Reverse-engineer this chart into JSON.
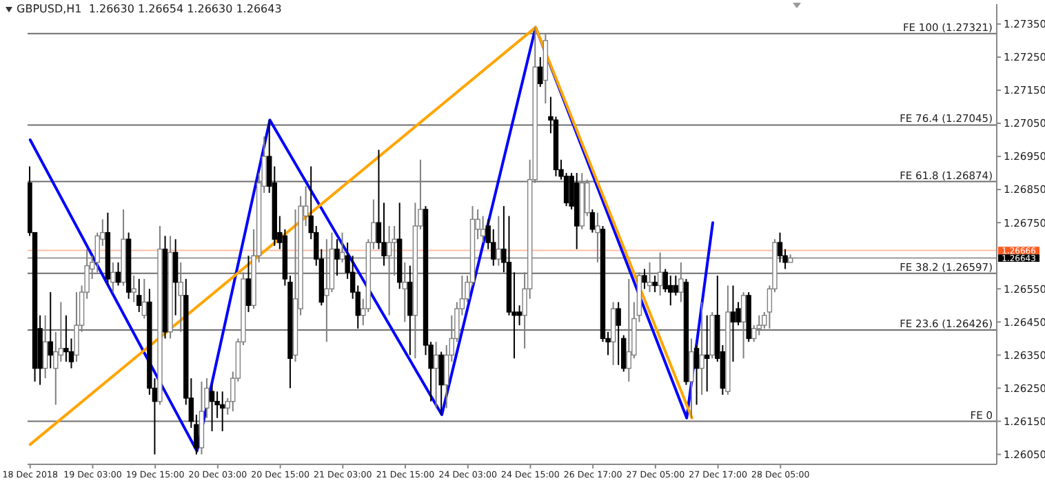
{
  "chart_data": {
    "type": "candlestick",
    "title": "GBPUSD,H1  1.26630 1.26654 1.26630 1.26643",
    "categories": [
      "18 Dec 2018",
      null,
      null,
      null,
      null,
      null,
      null,
      null,
      null,
      null,
      null,
      null,
      "19 Dec 03:00",
      null,
      null,
      null,
      null,
      null,
      null,
      null,
      null,
      null,
      null,
      null,
      "19 Dec 15:00",
      null,
      null,
      null,
      null,
      null,
      null,
      null,
      null,
      null,
      null,
      null,
      "20 Dec 03:00",
      null,
      null,
      null,
      null,
      null,
      null,
      null,
      null,
      null,
      null,
      null,
      "20 Dec 15:00",
      null,
      null,
      null,
      null,
      null,
      null,
      null,
      null,
      null,
      null,
      null,
      "21 Dec 03:00",
      null,
      null,
      null,
      null,
      null,
      null,
      null,
      null,
      null,
      null,
      null,
      "21 Dec 15:00",
      null,
      null,
      null,
      null,
      null,
      null,
      null,
      null,
      null,
      null,
      null,
      "24 Dec 03:00",
      null,
      null,
      null,
      null,
      null,
      null,
      null,
      null,
      null,
      null,
      null,
      "24 Dec 15:00",
      null,
      null,
      null,
      null,
      null,
      null,
      null,
      null,
      null,
      null,
      null,
      "26 Dec 17:00",
      null,
      null,
      null,
      null,
      null,
      null,
      null,
      null,
      null,
      null,
      null,
      "27 Dec 05:00",
      null,
      null,
      null,
      null,
      null,
      null,
      null,
      null,
      null,
      null,
      null,
      "27 Dec 17:00",
      null,
      null,
      null,
      null,
      null,
      null,
      null,
      null,
      null,
      null,
      null,
      "28 Dec 05:00",
      null,
      null,
      null,
      null,
      null,
      null,
      null,
      null,
      null,
      null,
      null,
      null,
      null,
      null,
      null,
      null,
      null,
      null,
      null,
      null,
      null,
      null,
      null,
      null,
      null,
      null,
      null,
      null,
      null,
      null,
      null,
      null,
      null,
      null,
      null,
      null,
      null,
      null,
      null,
      null,
      null
    ],
    "ohlc": [
      [
        1.2687,
        1.2692,
        1.2671,
        1.2672
      ],
      [
        1.2672,
        1.2672,
        1.2627,
        1.2631
      ],
      [
        1.2643,
        1.2647,
        1.2626,
        1.2631
      ],
      [
        1.2631,
        1.2647,
        1.2628,
        1.2639
      ],
      [
        1.2639,
        1.2654,
        1.2631,
        1.2635
      ],
      [
        1.2631,
        1.2642,
        1.262,
        1.2636
      ],
      [
        1.2635,
        1.2651,
        1.2633,
        1.2637
      ],
      [
        1.2637,
        1.2647,
        1.2633,
        1.2636
      ],
      [
        1.2636,
        1.264,
        1.2631,
        1.2633
      ],
      [
        1.2635,
        1.2654,
        1.2633,
        1.2644
      ],
      [
        1.2644,
        1.2656,
        1.2642,
        1.2654
      ],
      [
        1.2654,
        1.2667,
        1.2652,
        1.2662
      ],
      [
        1.2661,
        1.2665,
        1.2658,
        1.2663
      ],
      [
        1.2663,
        1.2672,
        1.266,
        1.2671
      ],
      [
        1.267,
        1.2676,
        1.2668,
        1.2672
      ],
      [
        1.2672,
        1.2678,
        1.2656,
        1.2658
      ],
      [
        1.2657,
        1.2663,
        1.2654,
        1.266
      ],
      [
        1.266,
        1.2663,
        1.2656,
        1.2657
      ],
      [
        1.2657,
        1.2679,
        1.2656,
        1.267
      ],
      [
        1.267,
        1.2672,
        1.2652,
        1.2654
      ],
      [
        1.2654,
        1.2659,
        1.2651,
        1.2655
      ],
      [
        1.2653,
        1.2658,
        1.2648,
        1.265
      ],
      [
        1.2647,
        1.2658,
        1.2646,
        1.2651
      ],
      [
        1.2651,
        1.2655,
        1.2623,
        1.2625
      ],
      [
        1.2625,
        1.2628,
        1.2605,
        1.2621
      ],
      [
        1.2621,
        1.2674,
        1.262,
        1.2667
      ],
      [
        1.2667,
        1.2671,
        1.264,
        1.2642
      ],
      [
        1.2642,
        1.2671,
        1.264,
        1.2666
      ],
      [
        1.2666,
        1.267,
        1.2647,
        1.2657
      ],
      [
        1.2653,
        1.2663,
        1.2642,
        1.2657
      ],
      [
        1.2653,
        1.2658,
        1.262,
        1.2622
      ],
      [
        1.2622,
        1.2628,
        1.2613,
        1.2615
      ],
      [
        1.2614,
        1.2617,
        1.2605,
        1.2607
      ],
      [
        1.2607,
        1.2627,
        1.2605,
        1.2618
      ],
      [
        1.2619,
        1.2628,
        1.2616,
        1.2625
      ],
      [
        1.2624,
        1.2626,
        1.2612,
        1.2621
      ],
      [
        1.2621,
        1.2624,
        1.2616,
        1.262
      ],
      [
        1.262,
        1.2624,
        1.2612,
        1.2619
      ],
      [
        1.2619,
        1.2622,
        1.2617,
        1.2621
      ],
      [
        1.2621,
        1.263,
        1.2618,
        1.2628
      ],
      [
        1.2628,
        1.264,
        1.2627,
        1.2639
      ],
      [
        1.2639,
        1.266,
        1.2638,
        1.2658
      ],
      [
        1.2658,
        1.2665,
        1.2648,
        1.265
      ],
      [
        1.265,
        1.2673,
        1.2649,
        1.2665
      ],
      [
        1.2665,
        1.269,
        1.2663,
        1.2687
      ],
      [
        1.2686,
        1.2701,
        1.2684,
        1.2695
      ],
      [
        1.2695,
        1.2706,
        1.2684,
        1.2686
      ],
      [
        1.2687,
        1.2692,
        1.2668,
        1.267
      ],
      [
        1.2672,
        1.2677,
        1.2667,
        1.2669
      ],
      [
        1.2671,
        1.2673,
        1.2656,
        1.2658
      ],
      [
        1.2657,
        1.2659,
        1.2625,
        1.2634
      ],
      [
        1.2635,
        1.2679,
        1.2633,
        1.2652
      ],
      [
        1.2649,
        1.2683,
        1.2647,
        1.268
      ],
      [
        1.2677,
        1.2686,
        1.2674,
        1.268
      ],
      [
        1.2677,
        1.2692,
        1.267,
        1.2672
      ],
      [
        1.2672,
        1.2674,
        1.2662,
        1.2664
      ],
      [
        1.2664,
        1.2667,
        1.265,
        1.2651
      ],
      [
        1.2653,
        1.267,
        1.2639,
        1.2655
      ],
      [
        1.2655,
        1.2672,
        1.2654,
        1.2667
      ],
      [
        1.2667,
        1.267,
        1.2659,
        1.2664
      ],
      [
        1.2664,
        1.2672,
        1.2663,
        1.2666
      ],
      [
        1.2665,
        1.2669,
        1.2658,
        1.266
      ],
      [
        1.266,
        1.2665,
        1.2652,
        1.2654
      ],
      [
        1.2654,
        1.2656,
        1.2643,
        1.2647
      ],
      [
        1.2647,
        1.2652,
        1.2644,
        1.2649
      ],
      [
        1.2649,
        1.267,
        1.2648,
        1.2669
      ],
      [
        1.2669,
        1.2682,
        1.2667,
        1.2675
      ],
      [
        1.2675,
        1.2697,
        1.2667,
        1.2669
      ],
      [
        1.2669,
        1.2681,
        1.2662,
        1.2665
      ],
      [
        1.2665,
        1.2674,
        1.2647,
        1.2669
      ],
      [
        1.2669,
        1.2674,
        1.2659,
        1.267
      ],
      [
        1.267,
        1.2681,
        1.2655,
        1.2657
      ],
      [
        1.2655,
        1.2663,
        1.2645,
        1.2657
      ],
      [
        1.2657,
        1.2662,
        1.2635,
        1.2647
      ],
      [
        1.2647,
        1.2681,
        1.2634,
        1.2674
      ],
      [
        1.2674,
        1.2694,
        1.2673,
        1.2679
      ],
      [
        1.2679,
        1.268,
        1.2635,
        1.2638
      ],
      [
        1.2638,
        1.2639,
        1.2621,
        1.2631
      ],
      [
        1.2631,
        1.2639,
        1.2619,
        1.2635
      ],
      [
        1.2635,
        1.2636,
        1.2617,
        1.2626
      ],
      [
        1.2626,
        1.2638,
        1.2619,
        1.2635
      ],
      [
        1.2635,
        1.2647,
        1.2633,
        1.264
      ],
      [
        1.264,
        1.2651,
        1.2639,
        1.2649
      ],
      [
        1.2649,
        1.2659,
        1.2647,
        1.2652
      ],
      [
        1.2652,
        1.2659,
        1.2651,
        1.2657
      ],
      [
        1.2657,
        1.268,
        1.2656,
        1.2676
      ],
      [
        1.2673,
        1.2679,
        1.267,
        1.2676
      ],
      [
        1.2671,
        1.2677,
        1.2669,
        1.2673
      ],
      [
        1.2674,
        1.2676,
        1.2667,
        1.2669
      ],
      [
        1.2669,
        1.2673,
        1.2662,
        1.2664
      ],
      [
        1.2664,
        1.2677,
        1.2662,
        1.2667
      ],
      [
        1.2667,
        1.268,
        1.266,
        1.2663
      ],
      [
        1.2663,
        1.2677,
        1.2647,
        1.2648
      ],
      [
        1.2648,
        1.266,
        1.2634,
        1.2647
      ],
      [
        1.2648,
        1.265,
        1.2644,
        1.2647
      ],
      [
        1.2647,
        1.266,
        1.2637,
        1.2655
      ],
      [
        1.2655,
        1.2694,
        1.2652,
        1.2688
      ],
      [
        1.2688,
        1.2734,
        1.2687,
        1.2722
      ],
      [
        1.2722,
        1.2725,
        1.2716,
        1.2717
      ],
      [
        1.2718,
        1.2732,
        1.2711,
        1.273
      ],
      [
        1.2707,
        1.2713,
        1.2702,
        1.2706
      ],
      [
        1.2706,
        1.2707,
        1.2689,
        1.2691
      ],
      [
        1.2691,
        1.2694,
        1.2688,
        1.2689
      ],
      [
        1.2689,
        1.269,
        1.268,
        1.2681
      ],
      [
        1.2689,
        1.269,
        1.2679,
        1.268
      ],
      [
        1.2687,
        1.269,
        1.2667,
        1.2674
      ],
      [
        1.2674,
        1.269,
        1.2673,
        1.2687
      ],
      [
        1.2678,
        1.2688,
        1.2677,
        1.2687
      ],
      [
        1.2678,
        1.2679,
        1.2672,
        1.2673
      ],
      [
        1.2672,
        1.2678,
        1.2663,
        1.2674
      ],
      [
        1.2673,
        1.2674,
        1.2639,
        1.264
      ],
      [
        1.264,
        1.2642,
        1.2635,
        1.2639
      ],
      [
        1.2639,
        1.2651,
        1.2632,
        1.2649
      ],
      [
        1.2649,
        1.2651,
        1.2632,
        1.2644
      ],
      [
        1.264,
        1.2641,
        1.263,
        1.2631
      ],
      [
        1.2631,
        1.2658,
        1.2627,
        1.2636
      ],
      [
        1.2635,
        1.2651,
        1.2634,
        1.2646
      ],
      [
        1.2647,
        1.266,
        1.2645,
        1.2659
      ],
      [
        1.2659,
        1.2661,
        1.2655,
        1.2657
      ],
      [
        1.2656,
        1.2663,
        1.2654,
        1.2657
      ],
      [
        1.2657,
        1.2659,
        1.2654,
        1.2656
      ],
      [
        1.2656,
        1.2666,
        1.2653,
        1.266
      ],
      [
        1.266,
        1.2661,
        1.2654,
        1.2655
      ],
      [
        1.2656,
        1.2659,
        1.265,
        1.2654
      ],
      [
        1.2656,
        1.2659,
        1.2653,
        1.2654
      ],
      [
        1.2654,
        1.2663,
        1.2651,
        1.2658
      ],
      [
        1.2657,
        1.2658,
        1.2626,
        1.2627
      ],
      [
        1.2627,
        1.264,
        1.2616,
        1.2636
      ],
      [
        1.2637,
        1.2638,
        1.262,
        1.2631
      ],
      [
        1.2631,
        1.2651,
        1.2623,
        1.2635
      ],
      [
        1.2635,
        1.2647,
        1.2624,
        1.2634
      ],
      [
        1.2635,
        1.2648,
        1.2634,
        1.2647
      ],
      [
        1.2647,
        1.2659,
        1.2633,
        1.2634
      ],
      [
        1.2636,
        1.2638,
        1.2623,
        1.2625
      ],
      [
        1.2624,
        1.2656,
        1.2623,
        1.2648
      ],
      [
        1.2648,
        1.2656,
        1.2633,
        1.2645
      ],
      [
        1.2649,
        1.2651,
        1.2644,
        1.2645
      ],
      [
        1.2645,
        1.2654,
        1.2634,
        1.2653
      ],
      [
        1.2653,
        1.2654,
        1.2639,
        1.264
      ],
      [
        1.264,
        1.2644,
        1.2639,
        1.2643
      ],
      [
        1.2643,
        1.2647,
        1.2641,
        1.2644
      ],
      [
        1.2644,
        1.2648,
        1.2643,
        1.2647
      ],
      [
        1.2648,
        1.2656,
        1.2643,
        1.2655
      ],
      [
        1.2655,
        1.267,
        1.2654,
        1.2669
      ],
      [
        1.2669,
        1.2672,
        1.2663,
        1.2665
      ],
      [
        1.2665,
        1.2667,
        1.2661,
        1.2663
      ],
      [
        1.2663,
        1.26654,
        1.2663,
        1.26643
      ],
      null,
      null,
      null,
      null,
      null,
      null,
      null,
      null,
      null,
      null,
      null,
      null,
      null,
      null,
      null,
      null,
      null,
      null,
      null,
      null,
      null,
      null,
      null,
      null,
      null,
      null,
      null,
      null,
      null,
      null,
      null,
      null,
      null,
      null,
      null,
      null,
      null,
      null,
      null
    ],
    "series": [
      {
        "type": "line",
        "color": "#0000ff",
        "values": [
          1.27,
          null,
          null,
          null,
          null,
          null,
          null,
          null,
          null,
          null,
          null,
          null,
          null,
          null,
          null,
          null,
          null,
          null,
          null,
          null,
          null,
          null,
          null,
          null,
          null,
          null,
          null,
          null,
          null,
          null,
          null,
          null,
          1.2606,
          null,
          null,
          null,
          null,
          null,
          null,
          null,
          null,
          null,
          null,
          null,
          null,
          null,
          1.2706,
          null,
          null,
          null,
          null,
          null,
          null,
          null,
          null,
          null,
          null,
          null,
          null,
          null,
          null,
          null,
          null,
          null,
          null,
          null,
          null,
          null,
          null,
          null,
          null,
          null,
          null,
          null,
          null,
          null,
          null,
          null,
          null,
          1.2617,
          null,
          null,
          null,
          null,
          null,
          null,
          null,
          null,
          null,
          null,
          null,
          null,
          null,
          null,
          null,
          null,
          null,
          1.2734,
          null,
          null,
          null,
          null,
          null,
          null,
          null,
          null,
          null,
          null,
          null,
          null,
          null,
          null,
          null,
          null,
          null,
          null,
          null,
          null,
          null,
          null,
          null,
          null,
          null,
          null,
          null,
          null,
          1.2616,
          null,
          null,
          null,
          null,
          1.2675,
          null,
          null,
          null,
          null,
          null,
          null,
          null,
          null,
          null,
          null,
          null,
          null,
          null,
          null,
          null,
          null,
          null,
          null,
          null,
          null,
          null,
          null,
          null,
          null,
          null,
          null,
          null,
          null,
          null,
          null,
          null,
          null,
          null,
          null,
          null,
          null,
          null,
          null,
          null,
          null,
          null,
          null,
          null,
          null,
          null,
          null,
          null,
          null,
          null,
          null,
          null,
          null,
          null,
          null
        ]
      },
      {
        "type": "line",
        "color": "#ffa500",
        "values": [
          1.2608,
          null,
          null,
          null,
          null,
          null,
          null,
          null,
          null,
          null,
          null,
          null,
          null,
          null,
          null,
          null,
          null,
          null,
          null,
          null,
          null,
          null,
          null,
          null,
          null,
          null,
          null,
          null,
          null,
          null,
          null,
          null,
          null,
          null,
          null,
          null,
          null,
          null,
          null,
          null,
          null,
          null,
          null,
          null,
          null,
          null,
          null,
          null,
          null,
          null,
          null,
          null,
          null,
          null,
          null,
          null,
          null,
          null,
          null,
          null,
          null,
          null,
          null,
          null,
          null,
          null,
          null,
          null,
          null,
          null,
          null,
          null,
          null,
          null,
          null,
          null,
          null,
          null,
          null,
          null,
          null,
          null,
          null,
          null,
          null,
          null,
          null,
          null,
          null,
          null,
          null,
          null,
          null,
          null,
          null,
          null,
          null,
          1.2734,
          null,
          null,
          null,
          null,
          null,
          null,
          null,
          null,
          null,
          null,
          null,
          null,
          null,
          null,
          null,
          null,
          null,
          null,
          null,
          null,
          null,
          null,
          null,
          null,
          null,
          null,
          null,
          null,
          null,
          1.2616,
          null,
          null,
          null,
          null,
          null,
          null,
          null,
          null,
          null,
          null,
          null,
          null,
          null,
          null,
          null,
          null,
          null,
          null,
          null,
          null,
          null,
          null,
          null,
          null,
          null,
          null,
          null,
          null,
          null,
          null,
          null,
          null,
          null,
          null,
          null,
          null,
          null,
          null,
          null,
          null,
          null,
          null,
          null,
          null,
          null,
          null,
          null,
          null,
          null,
          null,
          null,
          null,
          null,
          null,
          null,
          null,
          null,
          null
        ]
      }
    ],
    "ylim": [
      1.2602,
      1.2741
    ],
    "yticks": [
      {
        "value": 1.2735,
        "label": "1.27350"
      },
      {
        "value": 1.2725,
        "label": "1.27250"
      },
      {
        "value": 1.2715,
        "label": "1.27150"
      },
      {
        "value": 1.2705,
        "label": "1.27050"
      },
      {
        "value": 1.2695,
        "label": "1.26950"
      },
      {
        "value": 1.2685,
        "label": "1.26850"
      },
      {
        "value": 1.2675,
        "label": "1.26750"
      },
      {
        "value": 1.2655,
        "label": "1.26550"
      },
      {
        "value": 1.2645,
        "label": "1.26450"
      },
      {
        "value": 1.2635,
        "label": "1.26350"
      },
      {
        "value": 1.2625,
        "label": "1.26250"
      },
      {
        "value": 1.2615,
        "label": "1.26150"
      },
      {
        "value": 1.2605,
        "label": "1.26050"
      }
    ],
    "ref_lines": [
      {
        "axis": "y",
        "value": 1.27321,
        "label": "FE 100  (1.27321)"
      },
      {
        "axis": "y",
        "value": 1.27045,
        "label": "FE 76.4  (1.27045)"
      },
      {
        "axis": "y",
        "value": 1.26874,
        "label": "FE 61.8  (1.26874)"
      },
      {
        "axis": "y",
        "value": 1.26597,
        "label": "FE 38.2  (1.26597)"
      },
      {
        "axis": "y",
        "value": 1.26426,
        "label": "FE 23.6  (1.26426)"
      },
      {
        "axis": "y",
        "value": 1.2615,
        "label": "FE 0"
      },
      {
        "axis": "y",
        "value": 1.26666,
        "label": "1.26666",
        "color": "#ff5a1f"
      },
      {
        "axis": "y",
        "value": 1.26643,
        "label": "1.26643",
        "color": "#000000"
      }
    ]
  }
}
